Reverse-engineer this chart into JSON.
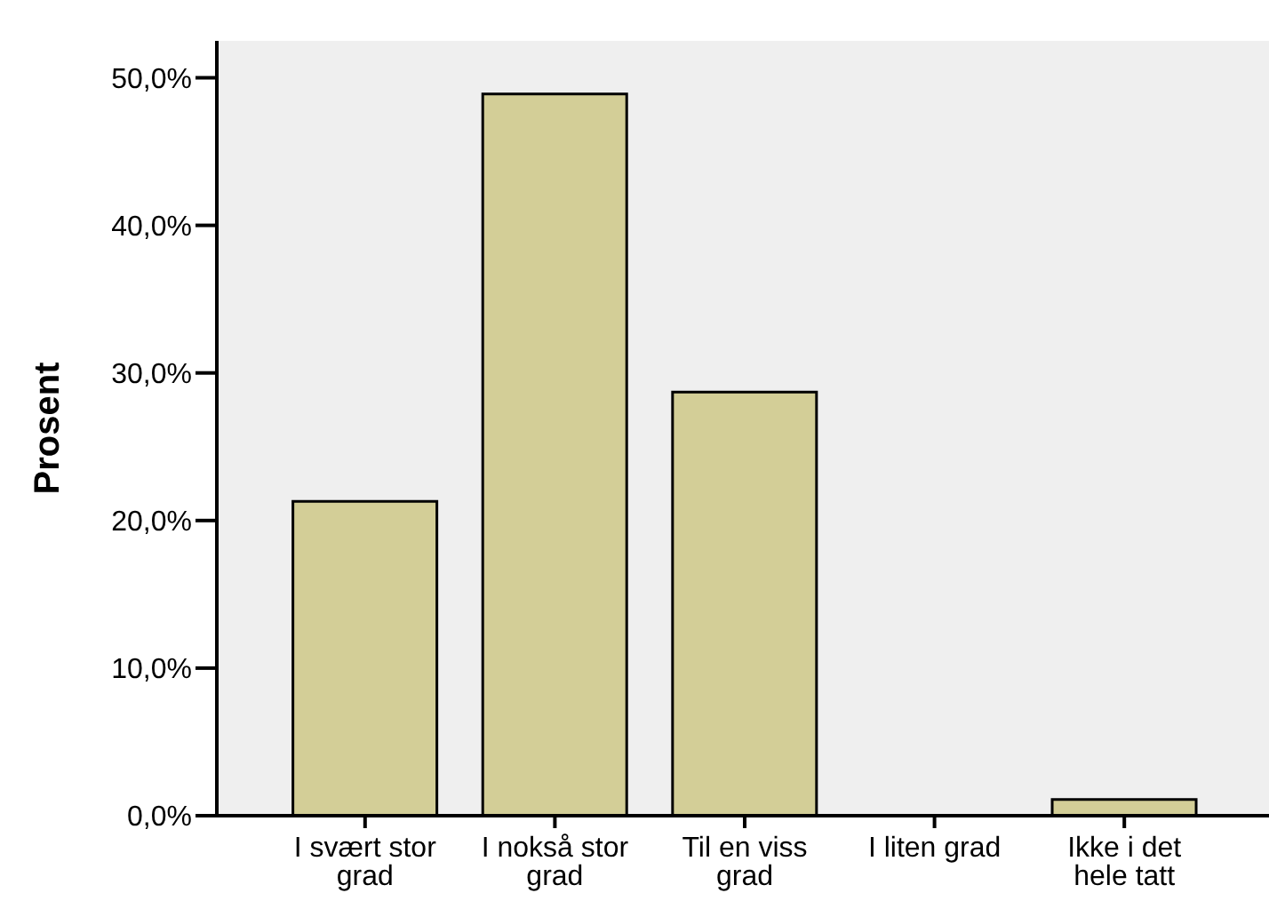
{
  "chart_data": {
    "type": "bar",
    "ylabel": "Prosent",
    "categories": [
      "I svært stor grad",
      "I nokså stor grad",
      "Til en viss grad",
      "I liten grad",
      "Ikke i det hele tatt"
    ],
    "values": [
      21.3,
      48.9,
      28.7,
      0,
      1.1
    ],
    "color": "#d3ce97",
    "ylim": [
      0,
      52.5
    ],
    "yticks": [
      {
        "value": 0,
        "label": "0,0%"
      },
      {
        "value": 10,
        "label": "10,0%"
      },
      {
        "value": 20,
        "label": "20,0%"
      },
      {
        "value": 30,
        "label": "30,0%"
      },
      {
        "value": 40,
        "label": "40,0%"
      },
      {
        "value": 50,
        "label": "50,0%"
      }
    ],
    "grid": false,
    "legend": false
  }
}
